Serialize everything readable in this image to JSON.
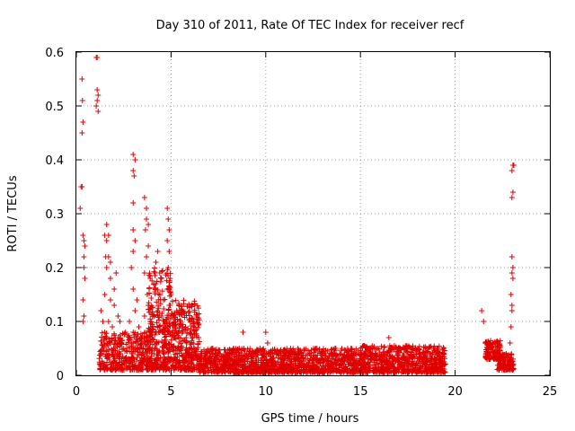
{
  "chart_data": {
    "type": "scatter",
    "title": "Day 310 of 2011, Rate Of TEC Index for receiver recf",
    "xlabel": "GPS time / hours",
    "ylabel": "ROTI / TECUs",
    "xlim": [
      0,
      25
    ],
    "ylim": [
      0,
      0.6
    ],
    "x_ticks": [
      0,
      5,
      10,
      15,
      20,
      25
    ],
    "y_ticks": [
      0,
      0.1,
      0.2,
      0.3,
      0.4,
      0.5,
      0.6
    ],
    "grid": true,
    "marker": "plus",
    "color": "#e00000",
    "series": [
      {
        "name": "",
        "points": [
          [
            0.2,
            0.31
          ],
          [
            0.25,
            0.35
          ],
          [
            0.3,
            0.35
          ],
          [
            0.3,
            0.55
          ],
          [
            0.32,
            0.51
          ],
          [
            0.35,
            0.47
          ],
          [
            0.3,
            0.45
          ],
          [
            0.35,
            0.26
          ],
          [
            0.4,
            0.25
          ],
          [
            0.45,
            0.24
          ],
          [
            0.4,
            0.22
          ],
          [
            0.4,
            0.2
          ],
          [
            0.45,
            0.18
          ],
          [
            0.35,
            0.14
          ],
          [
            0.4,
            0.11
          ],
          [
            0.35,
            0.1
          ],
          [
            1.05,
            0.59
          ],
          [
            1.1,
            0.59
          ],
          [
            1.1,
            0.53
          ],
          [
            1.15,
            0.52
          ],
          [
            1.1,
            0.51
          ],
          [
            1.05,
            0.5
          ],
          [
            1.15,
            0.49
          ],
          [
            1.5,
            0.26
          ],
          [
            1.6,
            0.25
          ],
          [
            1.7,
            0.26
          ],
          [
            1.6,
            0.28
          ],
          [
            1.55,
            0.22
          ],
          [
            1.7,
            0.22
          ],
          [
            1.8,
            0.21
          ],
          [
            1.6,
            0.2
          ],
          [
            1.8,
            0.18
          ],
          [
            2.0,
            0.16
          ],
          [
            1.5,
            0.15
          ],
          [
            1.8,
            0.14
          ],
          [
            2.0,
            0.13
          ],
          [
            2.1,
            0.19
          ],
          [
            1.3,
            0.12
          ],
          [
            1.4,
            0.1
          ],
          [
            1.7,
            0.1
          ],
          [
            1.9,
            0.09
          ],
          [
            2.2,
            0.11
          ],
          [
            2.3,
            0.1
          ],
          [
            1.5,
            0.08
          ],
          [
            1.6,
            0.07
          ],
          [
            1.8,
            0.06
          ],
          [
            2.0,
            0.05
          ],
          [
            1.7,
            0.04
          ],
          [
            2.2,
            0.07
          ],
          [
            2.4,
            0.06
          ],
          [
            2.5,
            0.05
          ],
          [
            2.3,
            0.04
          ],
          [
            2.6,
            0.08
          ],
          [
            3.0,
            0.41
          ],
          [
            3.0,
            0.38
          ],
          [
            3.05,
            0.37
          ],
          [
            3.1,
            0.4
          ],
          [
            3.0,
            0.32
          ],
          [
            3.0,
            0.27
          ],
          [
            3.1,
            0.25
          ],
          [
            3.0,
            0.23
          ],
          [
            2.9,
            0.2
          ],
          [
            3.0,
            0.16
          ],
          [
            3.2,
            0.14
          ],
          [
            3.1,
            0.12
          ],
          [
            2.8,
            0.1
          ],
          [
            3.0,
            0.08
          ],
          [
            3.3,
            0.09
          ],
          [
            3.4,
            0.07
          ],
          [
            3.0,
            0.06
          ],
          [
            3.2,
            0.05
          ],
          [
            3.5,
            0.04
          ],
          [
            2.9,
            0.03
          ],
          [
            3.6,
            0.33
          ],
          [
            3.7,
            0.31
          ],
          [
            3.7,
            0.29
          ],
          [
            3.8,
            0.28
          ],
          [
            3.65,
            0.27
          ],
          [
            3.8,
            0.24
          ],
          [
            3.7,
            0.22
          ],
          [
            3.6,
            0.19
          ],
          [
            3.9,
            0.18
          ],
          [
            3.75,
            0.15
          ],
          [
            3.8,
            0.13
          ],
          [
            3.6,
            0.11
          ],
          [
            3.9,
            0.1
          ],
          [
            3.7,
            0.08
          ],
          [
            4.0,
            0.07
          ],
          [
            3.8,
            0.05
          ],
          [
            4.1,
            0.04
          ],
          [
            3.9,
            0.03
          ],
          [
            4.2,
            0.21
          ],
          [
            4.3,
            0.23
          ],
          [
            4.4,
            0.19
          ],
          [
            4.2,
            0.17
          ],
          [
            4.5,
            0.18
          ],
          [
            4.4,
            0.15
          ],
          [
            4.6,
            0.14
          ],
          [
            4.3,
            0.12
          ],
          [
            4.5,
            0.11
          ],
          [
            4.7,
            0.09
          ],
          [
            4.4,
            0.08
          ],
          [
            4.6,
            0.06
          ],
          [
            4.8,
            0.05
          ],
          [
            4.3,
            0.04
          ],
          [
            4.7,
            0.03
          ],
          [
            4.5,
            0.02
          ],
          [
            4.8,
            0.31
          ],
          [
            4.85,
            0.29
          ],
          [
            4.9,
            0.27
          ],
          [
            4.8,
            0.25
          ],
          [
            4.9,
            0.23
          ],
          [
            4.85,
            0.2
          ],
          [
            4.95,
            0.18
          ],
          [
            4.8,
            0.16
          ],
          [
            5.0,
            0.15
          ],
          [
            4.9,
            0.13
          ],
          [
            5.0,
            0.11
          ],
          [
            5.3,
            0.12
          ],
          [
            5.5,
            0.1
          ],
          [
            5.6,
            0.09
          ],
          [
            5.4,
            0.08
          ],
          [
            5.8,
            0.07
          ],
          [
            6.0,
            0.06
          ],
          [
            5.5,
            0.05
          ],
          [
            6.2,
            0.05
          ],
          [
            5.9,
            0.04
          ],
          [
            6.4,
            0.04
          ],
          [
            6.1,
            0.03
          ],
          [
            6.6,
            0.03
          ],
          [
            6.8,
            0.04
          ],
          [
            7.0,
            0.03
          ],
          [
            7.2,
            0.05
          ],
          [
            7.4,
            0.03
          ],
          [
            7.6,
            0.04
          ],
          [
            7.8,
            0.02
          ],
          [
            8.0,
            0.03
          ],
          [
            8.2,
            0.04
          ],
          [
            8.4,
            0.02
          ],
          [
            8.6,
            0.05
          ],
          [
            8.8,
            0.08
          ],
          [
            8.9,
            0.03
          ],
          [
            9.1,
            0.04
          ],
          [
            9.3,
            0.02
          ],
          [
            9.5,
            0.03
          ],
          [
            9.7,
            0.05
          ],
          [
            9.9,
            0.04
          ],
          [
            10.0,
            0.08
          ],
          [
            10.1,
            0.06
          ],
          [
            10.3,
            0.03
          ],
          [
            10.5,
            0.02
          ],
          [
            10.7,
            0.04
          ],
          [
            10.9,
            0.03
          ],
          [
            11.1,
            0.02
          ],
          [
            11.3,
            0.04
          ],
          [
            11.5,
            0.03
          ],
          [
            11.7,
            0.05
          ],
          [
            11.9,
            0.02
          ],
          [
            12.1,
            0.03
          ],
          [
            12.3,
            0.04
          ],
          [
            12.5,
            0.02
          ],
          [
            12.7,
            0.05
          ],
          [
            12.9,
            0.03
          ],
          [
            13.1,
            0.04
          ],
          [
            13.3,
            0.02
          ],
          [
            13.5,
            0.03
          ],
          [
            13.7,
            0.05
          ],
          [
            13.9,
            0.04
          ],
          [
            14.1,
            0.02
          ],
          [
            14.3,
            0.03
          ],
          [
            14.5,
            0.05
          ],
          [
            14.7,
            0.02
          ],
          [
            14.9,
            0.04
          ],
          [
            15.1,
            0.03
          ],
          [
            15.3,
            0.02
          ],
          [
            15.5,
            0.04
          ],
          [
            15.7,
            0.03
          ],
          [
            15.9,
            0.05
          ],
          [
            16.1,
            0.02
          ],
          [
            16.3,
            0.04
          ],
          [
            16.5,
            0.07
          ],
          [
            16.7,
            0.03
          ],
          [
            16.9,
            0.05
          ],
          [
            17.1,
            0.02
          ],
          [
            17.3,
            0.04
          ],
          [
            17.5,
            0.03
          ],
          [
            17.7,
            0.05
          ],
          [
            17.9,
            0.02
          ],
          [
            18.1,
            0.04
          ],
          [
            18.3,
            0.03
          ],
          [
            18.5,
            0.05
          ],
          [
            18.7,
            0.04
          ],
          [
            18.9,
            0.03
          ],
          [
            19.1,
            0.05
          ],
          [
            19.2,
            0.04
          ],
          [
            19.3,
            0.03
          ],
          [
            19.4,
            0.05
          ],
          [
            21.4,
            0.12
          ],
          [
            21.5,
            0.1
          ],
          [
            21.6,
            0.06
          ],
          [
            21.7,
            0.05
          ],
          [
            21.8,
            0.06
          ],
          [
            21.9,
            0.05
          ],
          [
            22.0,
            0.04
          ],
          [
            22.1,
            0.06
          ],
          [
            22.2,
            0.04
          ],
          [
            22.3,
            0.03
          ],
          [
            22.4,
            0.02
          ],
          [
            22.5,
            0.03
          ],
          [
            22.6,
            0.02
          ],
          [
            22.7,
            0.04
          ],
          [
            22.8,
            0.02
          ],
          [
            22.9,
            0.03
          ],
          [
            23.0,
            0.02
          ],
          [
            22.9,
            0.06
          ],
          [
            22.95,
            0.09
          ],
          [
            23.0,
            0.12
          ],
          [
            23.0,
            0.13
          ],
          [
            22.95,
            0.15
          ],
          [
            23.0,
            0.19
          ],
          [
            23.05,
            0.18
          ],
          [
            23.0,
            0.22
          ],
          [
            23.05,
            0.2
          ],
          [
            23.0,
            0.33
          ],
          [
            23.05,
            0.34
          ],
          [
            23.0,
            0.38
          ],
          [
            23.05,
            0.39
          ],
          [
            23.1,
            0.39
          ]
        ]
      }
    ],
    "dense_bands": [
      {
        "x_from": 1.2,
        "x_to": 5.0,
        "y_min": 0.01,
        "y_max": 0.08,
        "count": 520
      },
      {
        "x_from": 3.8,
        "x_to": 5.0,
        "y_min": 0.08,
        "y_max": 0.2,
        "count": 140
      },
      {
        "x_from": 5.0,
        "x_to": 6.5,
        "y_min": 0.01,
        "y_max": 0.14,
        "count": 330
      },
      {
        "x_from": 6.5,
        "x_to": 10.0,
        "y_min": 0.005,
        "y_max": 0.05,
        "count": 520
      },
      {
        "x_from": 10.0,
        "x_to": 15.0,
        "y_min": 0.005,
        "y_max": 0.05,
        "count": 700
      },
      {
        "x_from": 15.0,
        "x_to": 19.5,
        "y_min": 0.005,
        "y_max": 0.055,
        "count": 680
      },
      {
        "x_from": 21.6,
        "x_to": 22.4,
        "y_min": 0.03,
        "y_max": 0.065,
        "count": 120
      },
      {
        "x_from": 22.2,
        "x_to": 23.1,
        "y_min": 0.01,
        "y_max": 0.04,
        "count": 130
      }
    ]
  }
}
